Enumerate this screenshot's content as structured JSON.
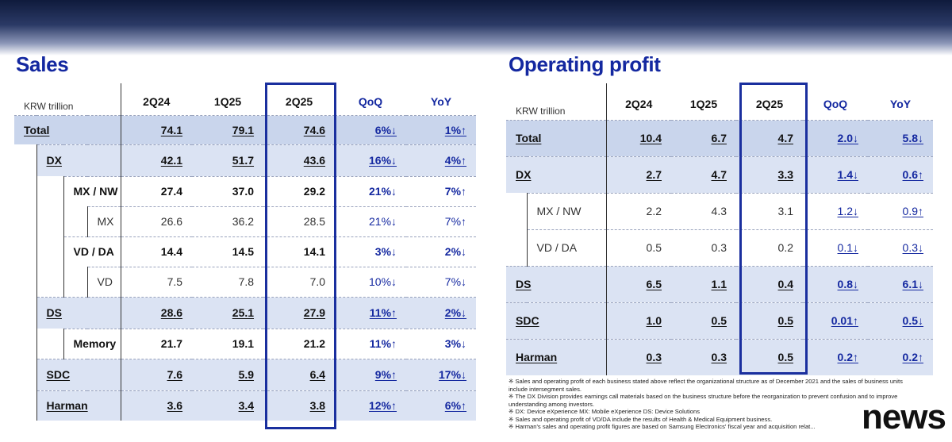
{
  "sales": {
    "title": "Sales",
    "unit": "KRW trillion",
    "headers": [
      "2Q24",
      "1Q25",
      "2Q25",
      "QoQ",
      "YoY"
    ],
    "rows": [
      {
        "label": "Total",
        "level": 0,
        "bold": true,
        "underline": true,
        "v1": "74.1",
        "v2": "79.1",
        "v3": "74.6",
        "qoq": "6%↓",
        "yoy": "1%↑"
      },
      {
        "label": "DX",
        "level": 1,
        "bold": true,
        "underline": true,
        "v1": "42.1",
        "v2": "51.7",
        "v3": "43.6",
        "qoq": "16%↓",
        "yoy": "4%↑"
      },
      {
        "label": "MX / NW",
        "level": 2,
        "bold": true,
        "underline": false,
        "v1": "27.4",
        "v2": "37.0",
        "v3": "29.2",
        "qoq": "21%↓",
        "yoy": "7%↑"
      },
      {
        "label": "MX",
        "level": 3,
        "bold": false,
        "underline": false,
        "v1": "26.6",
        "v2": "36.2",
        "v3": "28.5",
        "qoq": "21%↓",
        "yoy": "7%↑"
      },
      {
        "label": "VD / DA",
        "level": 2,
        "bold": true,
        "underline": false,
        "v1": "14.4",
        "v2": "14.5",
        "v3": "14.1",
        "qoq": "3%↓",
        "yoy": "2%↓"
      },
      {
        "label": "VD",
        "level": 3,
        "bold": false,
        "underline": false,
        "v1": "7.5",
        "v2": "7.8",
        "v3": "7.0",
        "qoq": "10%↓",
        "yoy": "7%↓"
      },
      {
        "label": "DS",
        "level": 1,
        "bold": true,
        "underline": true,
        "v1": "28.6",
        "v2": "25.1",
        "v3": "27.9",
        "qoq": "11%↑",
        "yoy": "2%↓"
      },
      {
        "label": "Memory",
        "level": 2,
        "bold": true,
        "underline": false,
        "v1": "21.7",
        "v2": "19.1",
        "v3": "21.2",
        "qoq": "11%↑",
        "yoy": "3%↓"
      },
      {
        "label": "SDC",
        "level": 1,
        "bold": true,
        "underline": true,
        "v1": "7.6",
        "v2": "5.9",
        "v3": "6.4",
        "qoq": "9%↑",
        "yoy": "17%↓"
      },
      {
        "label": "Harman",
        "level": 1,
        "bold": true,
        "underline": true,
        "v1": "3.6",
        "v2": "3.4",
        "v3": "3.8",
        "qoq": "12%↑",
        "yoy": "6%↑"
      }
    ]
  },
  "operating_profit": {
    "title": "Operating profit",
    "unit": "KRW trillion",
    "headers": [
      "2Q24",
      "1Q25",
      "2Q25",
      "QoQ",
      "YoY"
    ],
    "rows": [
      {
        "label": "Total",
        "level": 0,
        "v1": "10.4",
        "v2": "6.7",
        "v3": "4.7",
        "qoq": "2.0↓",
        "yoy": "5.8↓"
      },
      {
        "label": "DX",
        "level": 1,
        "v1": "2.7",
        "v2": "4.7",
        "v3": "3.3",
        "qoq": "1.4↓",
        "yoy": "0.6↑"
      },
      {
        "label": "MX / NW",
        "level": 2,
        "v1": "2.2",
        "v2": "4.3",
        "v3": "3.1",
        "qoq": "1.2↓",
        "yoy": "0.9↑"
      },
      {
        "label": "VD / DA",
        "level": 2,
        "v1": "0.5",
        "v2": "0.3",
        "v3": "0.2",
        "qoq": "0.1↓",
        "yoy": "0.3↓"
      },
      {
        "label": "DS",
        "level": 1,
        "v1": "6.5",
        "v2": "1.1",
        "v3": "0.4",
        "qoq": "0.8↓",
        "yoy": "6.1↓"
      },
      {
        "label": "SDC",
        "level": 1,
        "v1": "1.0",
        "v2": "0.5",
        "v3": "0.5",
        "qoq": "0.01↑",
        "yoy": "0.5↓"
      },
      {
        "label": "Harman",
        "level": 1,
        "v1": "0.3",
        "v2": "0.3",
        "v3": "0.5",
        "qoq": "0.2↑",
        "yoy": "0.2↑"
      }
    ]
  },
  "footnotes": [
    "※ Sales and operating profit of each business stated above reflect the organizational structure as of December 2021 and the sales of business units include intersegment sales.",
    "※ The DX Division provides earnings call materials based on the business structure before the reorganization to prevent confusion and to improve understanding among investors.",
    "※ DX: Device eXperience MX: Mobile eXperience DS: Device Solutions",
    "※ Sales and operating profit of VD/DA include the results of Health & Medical Equipment business.",
    "※ Harman's sales and operating profit figures are based on Samsung Electronics' fiscal year and acquisition relat..."
  ],
  "watermark": "news",
  "colors": {
    "accent": "#1428a0",
    "shade": "#dbe3f3",
    "total_shade": "#c9d5ec",
    "highlight_box": "#1a2f9e"
  }
}
